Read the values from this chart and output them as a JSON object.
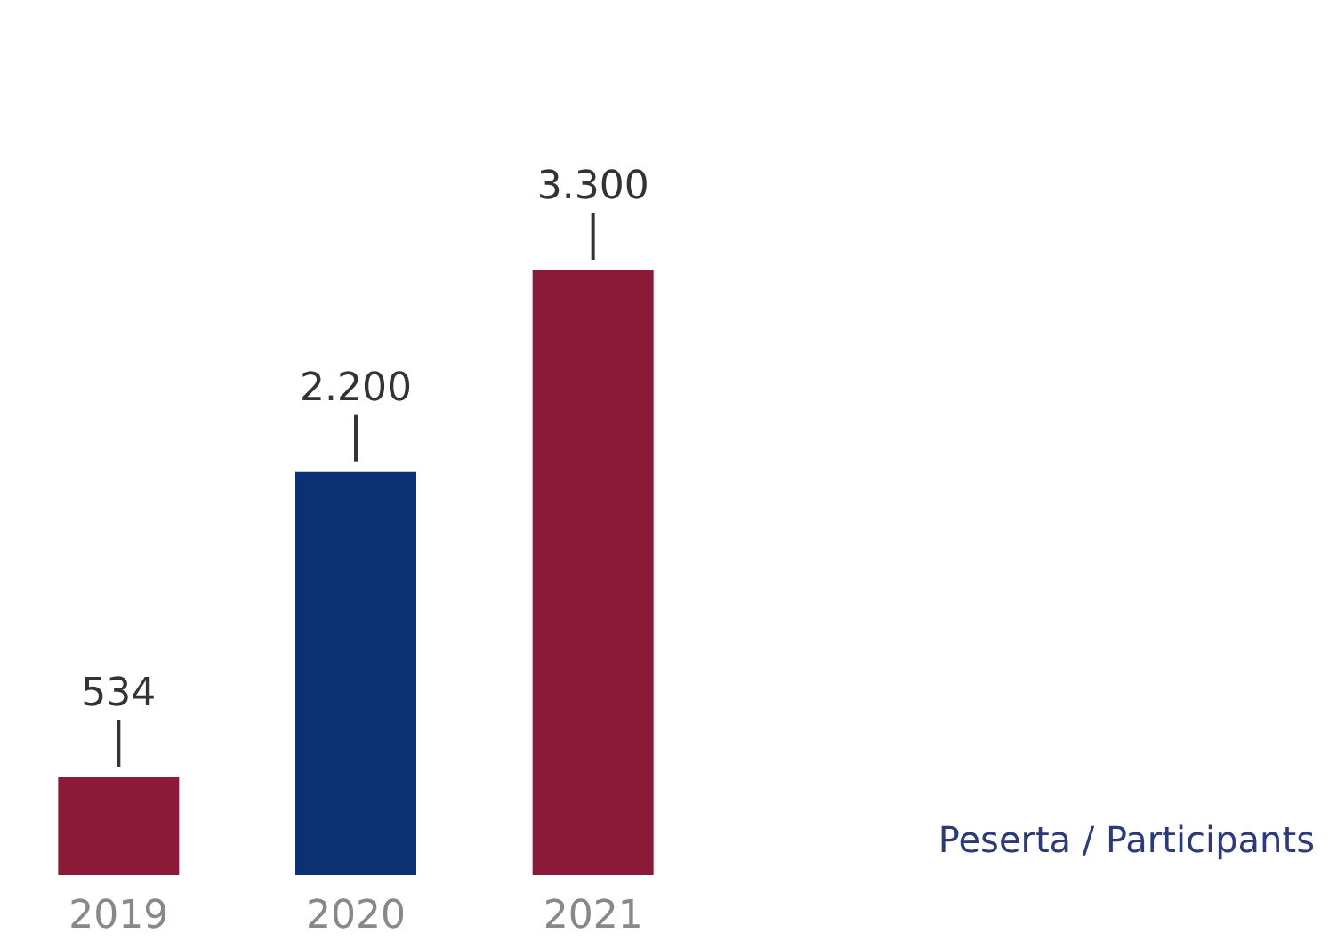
{
  "chart_data": {
    "type": "bar",
    "categories": [
      "2019",
      "2020",
      "2021"
    ],
    "values": [
      534,
      2200,
      3300
    ],
    "value_labels": [
      "534",
      "2.200",
      "3.300"
    ],
    "colors": [
      "#8a1a38",
      "#0b3173",
      "#8a1a38"
    ],
    "annotations": [
      "Peserta / Participants"
    ]
  }
}
